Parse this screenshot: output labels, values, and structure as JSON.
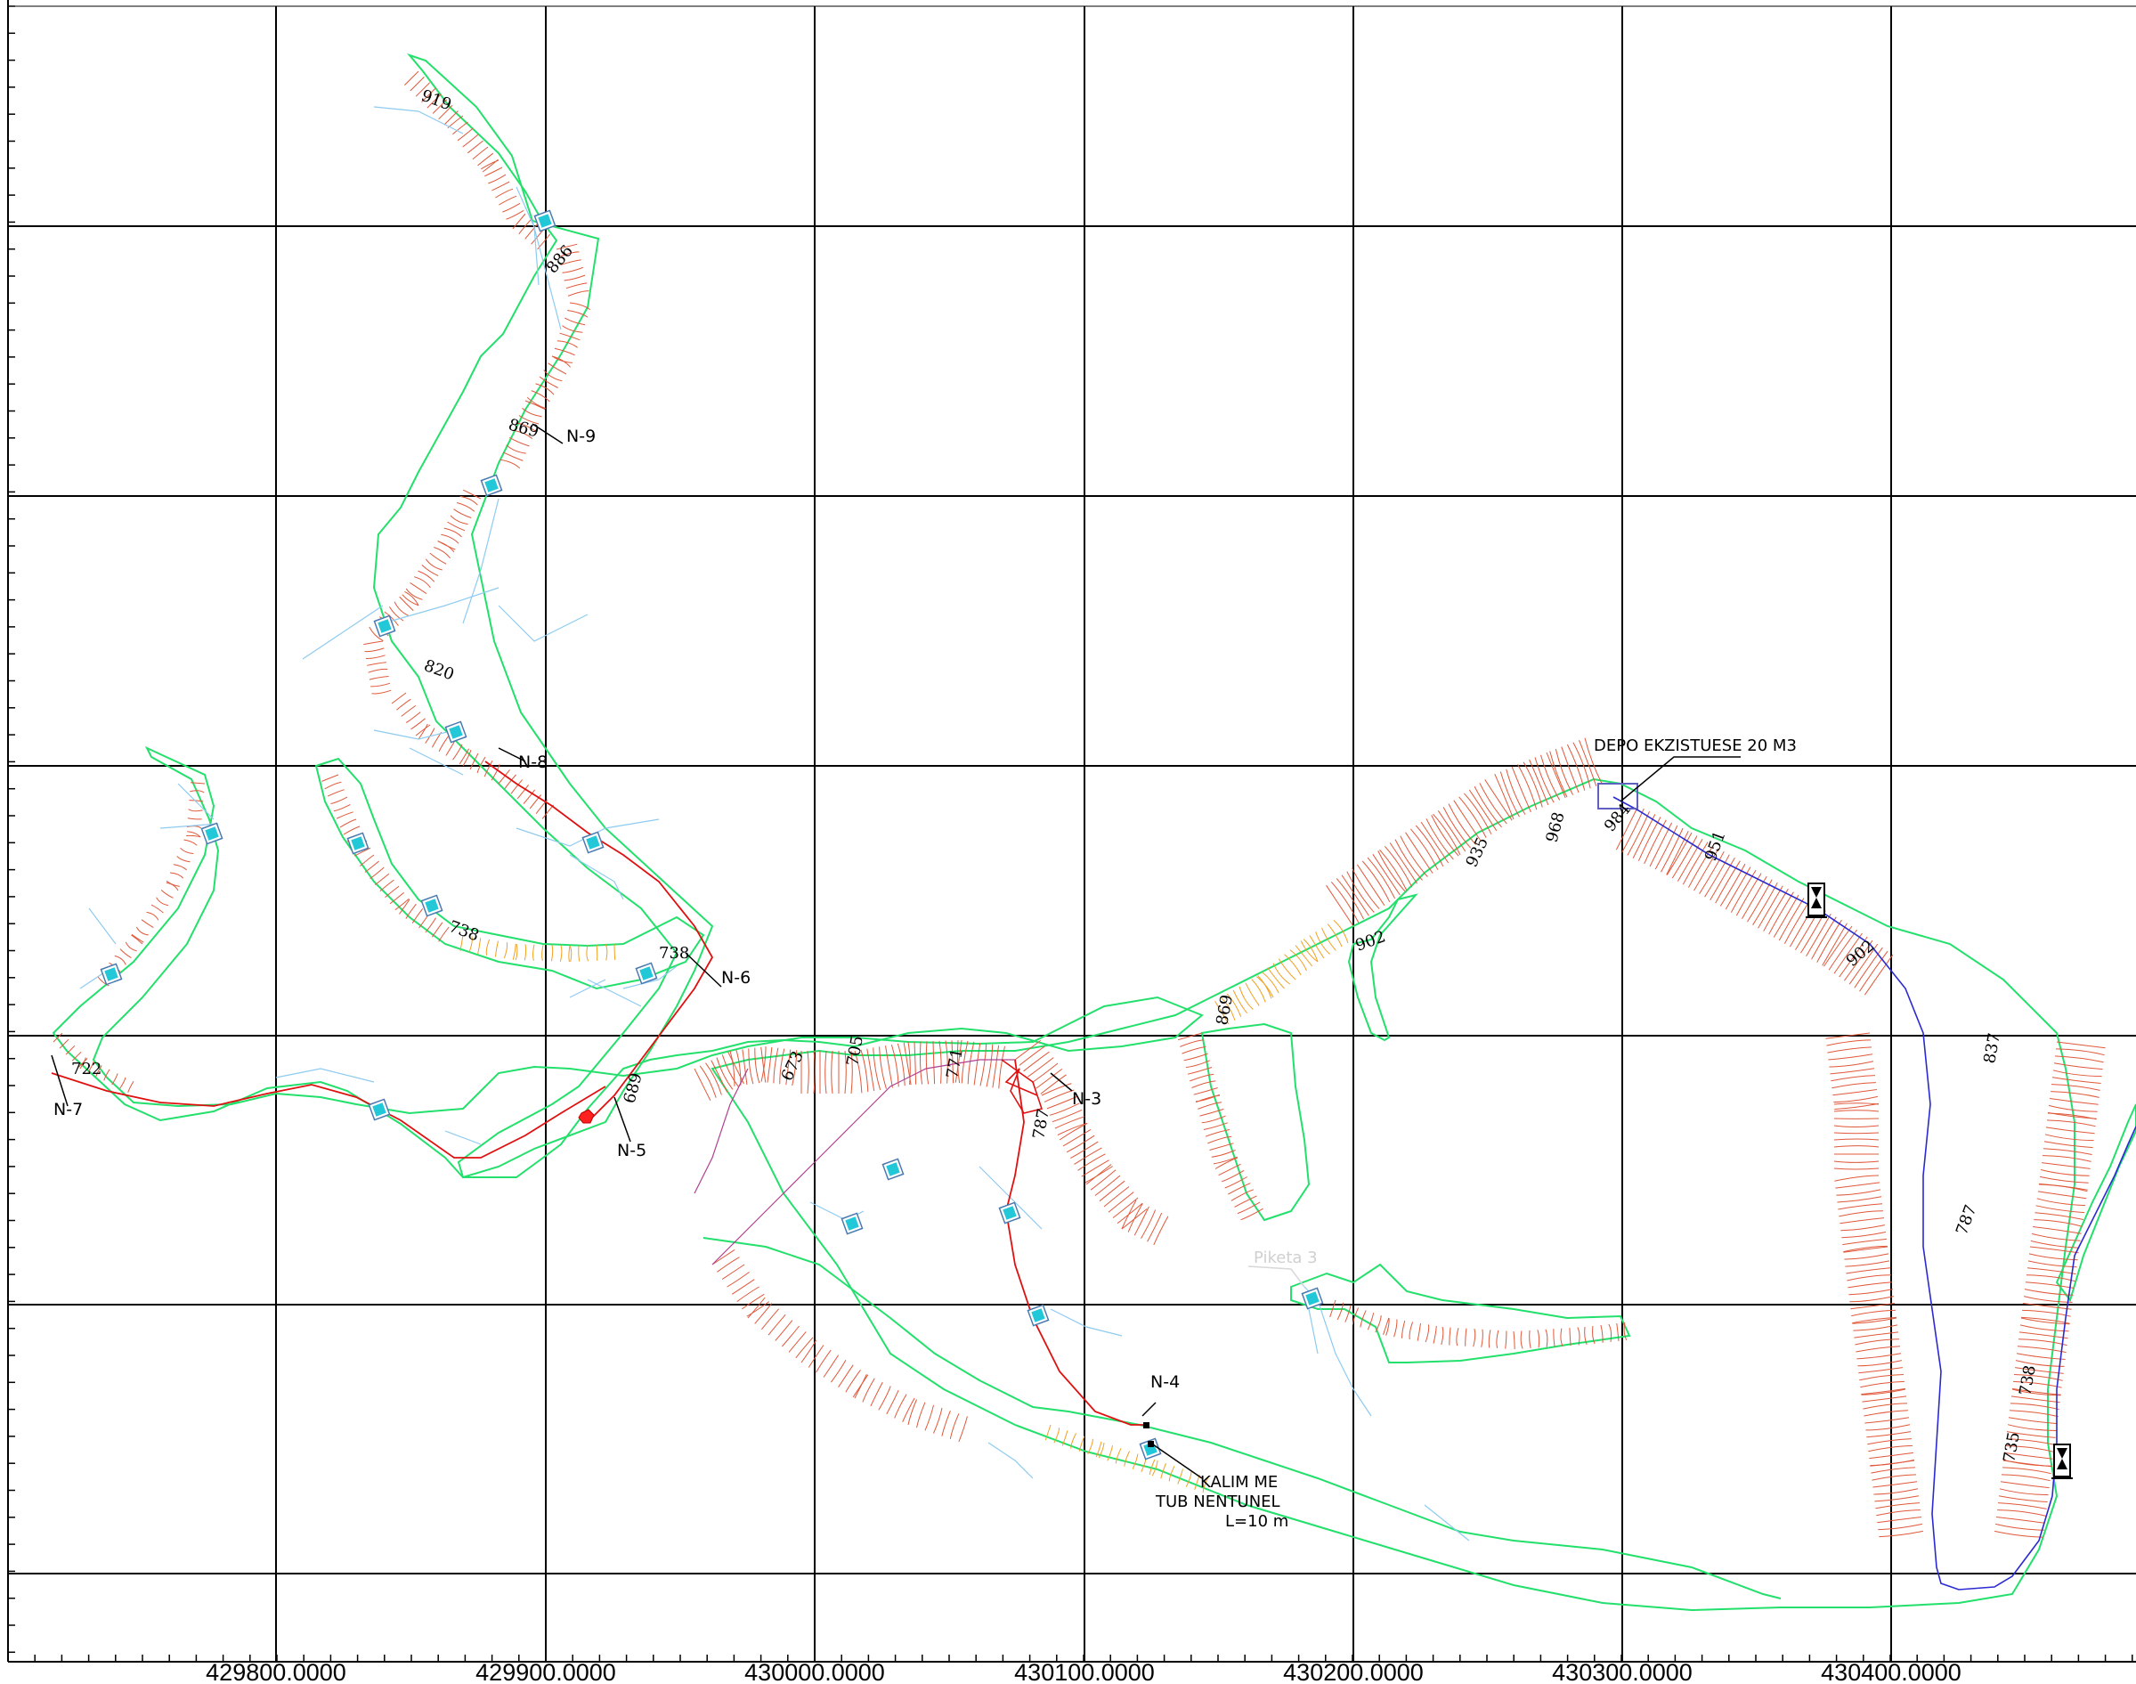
{
  "map": {
    "x_axis_labels": [
      "429800.0000",
      "429900.0000",
      "430000.0000",
      "430100.0000",
      "430200.0000",
      "430300.0000",
      "430400.0000"
    ],
    "markers": {
      "n9": "N-9",
      "n8": "N-8",
      "n7": "N-7",
      "n6": "N-6",
      "n5": "N-5",
      "n4": "N-4",
      "n3": "N-3"
    },
    "annotations": {
      "depo": "DEPO EKZISTUESE 20 M3",
      "piketa": "Piketa 3",
      "kalim_line1": "KALIM ME",
      "kalim_line2": "TUB NENTUNEL",
      "kalim_line3": "L=10 m"
    },
    "contour_labels": [
      "919",
      "886",
      "869",
      "820",
      "738",
      "738",
      "722",
      "689",
      "673",
      "705",
      "771",
      "787",
      "869",
      "902",
      "935",
      "968",
      "984",
      "951",
      "902",
      "837",
      "787",
      "738",
      "735"
    ],
    "colors": {
      "grid": "#000000",
      "road_edge": "#22e06b",
      "contour": "#e0583a",
      "contour_alt": "#f0a020",
      "pipe": "#e01010",
      "drainage": "#8ecbf0",
      "water_line": "#2a2ad0",
      "manhole": "#22c8d8"
    }
  }
}
